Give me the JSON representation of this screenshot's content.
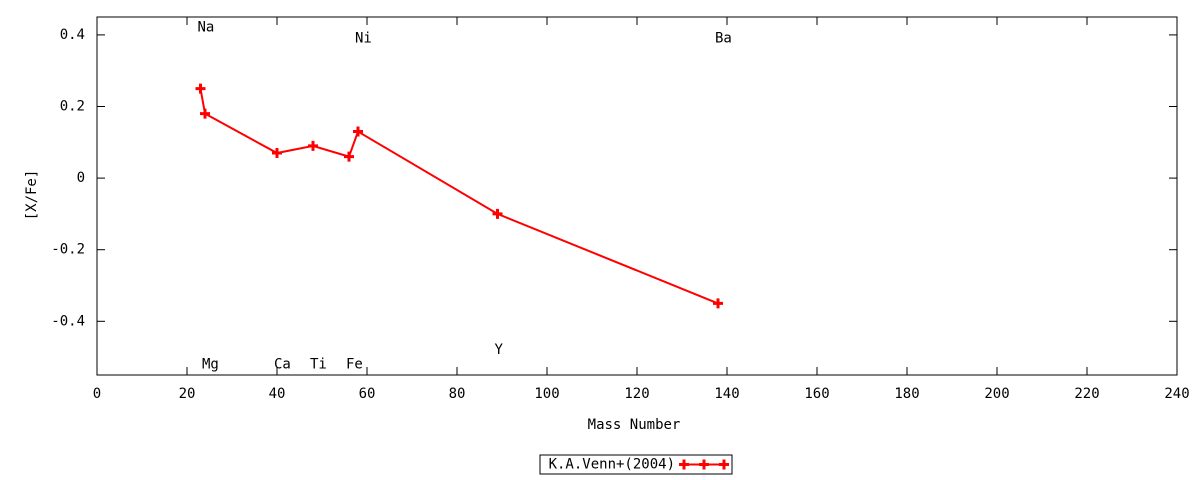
{
  "chart_data": {
    "type": "line",
    "x_label": "Mass Number",
    "y_label": "[X/Fe]",
    "x": [
      23,
      24,
      40,
      48,
      56,
      58,
      89,
      138
    ],
    "series": [
      {
        "name": "K.A.Venn+(2004)",
        "color": "#ff0000",
        "values": [
          0.25,
          0.18,
          0.07,
          0.09,
          0.06,
          0.13,
          -0.1,
          -0.35
        ]
      }
    ],
    "annotations": [
      {
        "text": "Na",
        "x": 23,
        "y": 0.42
      },
      {
        "text": "Mg",
        "x": 24,
        "y": -0.52
      },
      {
        "text": "Ca",
        "x": 40,
        "y": -0.52
      },
      {
        "text": "Ti",
        "x": 48,
        "y": -0.52
      },
      {
        "text": "Fe",
        "x": 56,
        "y": -0.52
      },
      {
        "text": "Ni",
        "x": 58,
        "y": 0.39
      },
      {
        "text": "Y",
        "x": 89,
        "y": -0.48
      },
      {
        "text": "Ba",
        "x": 138,
        "y": 0.39
      }
    ],
    "xlim": [
      0,
      240
    ],
    "xticks": [
      0,
      20,
      40,
      60,
      80,
      100,
      120,
      140,
      160,
      180,
      200,
      220,
      240
    ],
    "ylim": [
      -0.55,
      0.45
    ],
    "yticks": [
      -0.4,
      -0.2,
      0,
      0.2,
      0.4
    ],
    "legend": "bottom"
  }
}
